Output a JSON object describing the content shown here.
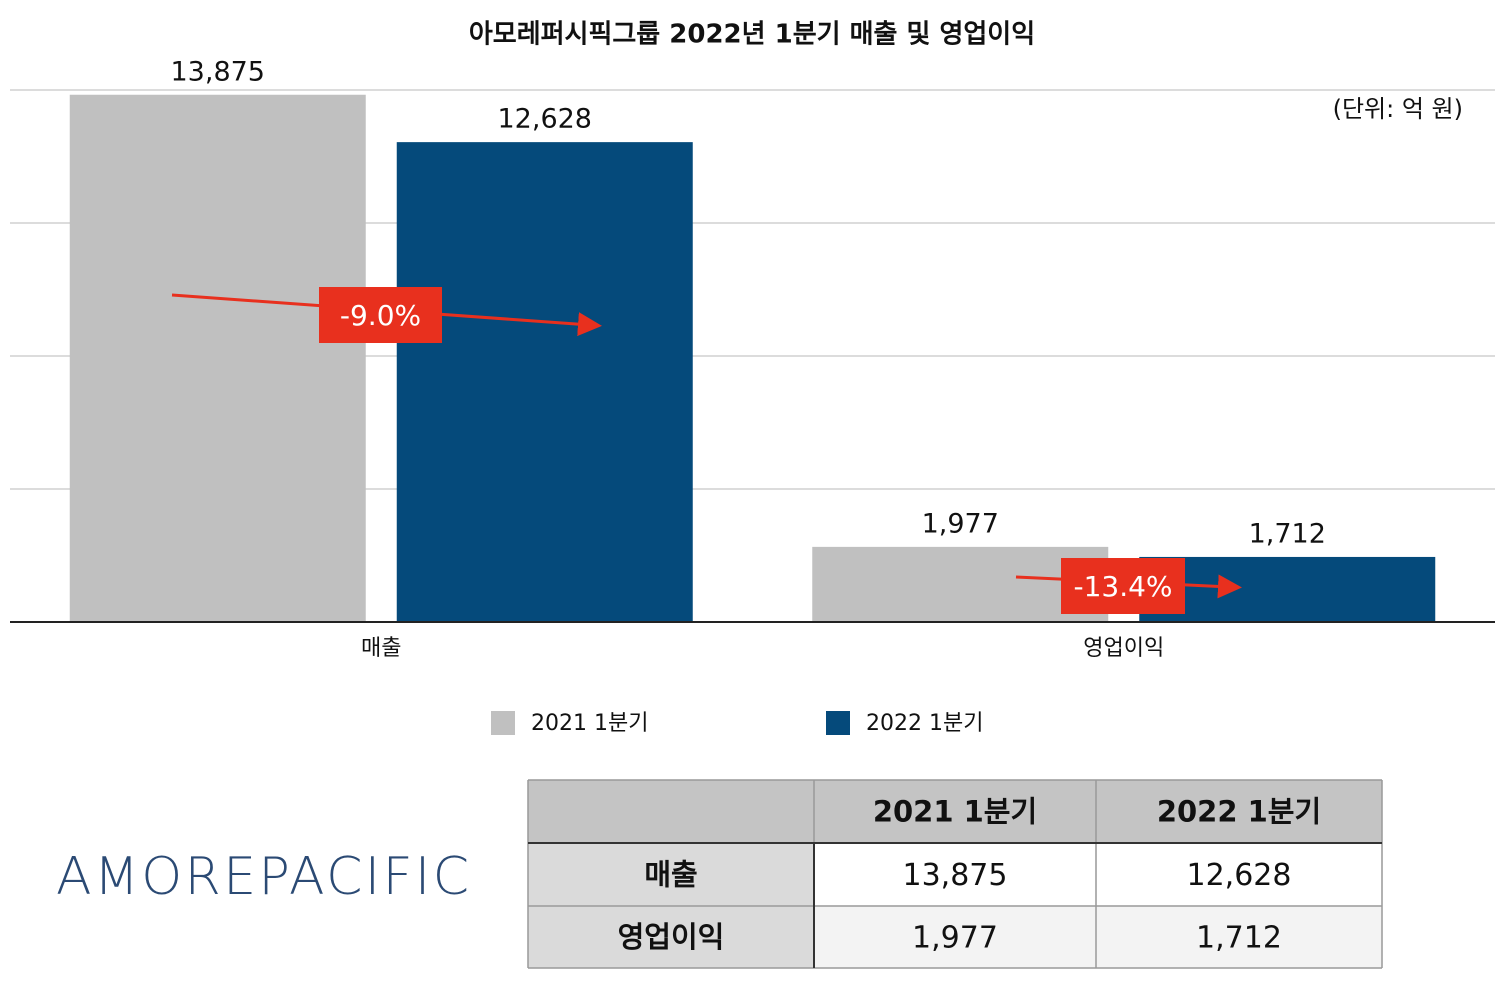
{
  "chart_data": {
    "type": "bar",
    "title": "아모레퍼시픽그룹 2022년 1분기 매출 및 영업이익",
    "unit": "(단위: 억 원)",
    "categories": [
      "매출",
      "영업이익"
    ],
    "series": [
      {
        "name": "2021 1분기",
        "color": "#c0c0c0",
        "values": [
          13875,
          1977
        ],
        "value_labels": [
          "13,875",
          "1,977"
        ]
      },
      {
        "name": "2022 1분기",
        "color": "#054a7b",
        "values": [
          12628,
          1712
        ],
        "value_labels": [
          "12,628",
          "1,712"
        ]
      }
    ],
    "annotations": [
      "-9.0%",
      "-13.4%"
    ],
    "annotation_color": "#e8301e",
    "ylim": [
      0,
      14000
    ],
    "yticks": [
      0,
      3500,
      7000,
      10500,
      14000
    ],
    "grid": true
  },
  "table": {
    "header": [
      "2021 1분기",
      "2022 1분기"
    ],
    "rows": [
      {
        "label": "매출",
        "cells": [
          "13,875",
          "12,628"
        ]
      },
      {
        "label": "영업이익",
        "cells": [
          "1,977",
          "1,712"
        ]
      }
    ]
  },
  "logo": "AMOREPACIFIC"
}
